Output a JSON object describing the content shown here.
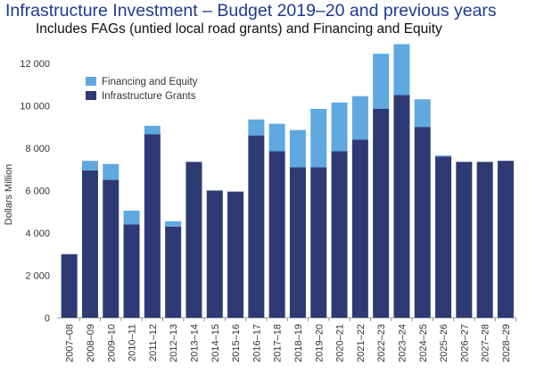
{
  "chart_data": {
    "type": "bar",
    "stacked": true,
    "title": "Infrastructure Investment – Budget 2019–20 and previous years",
    "subtitle": "Includes FAGs (untied local road grants) and Financing and Equity",
    "xlabel": "",
    "ylabel": "Dollars Million",
    "ylim": [
      0,
      13300
    ],
    "yticks": [
      0,
      2000,
      4000,
      6000,
      8000,
      10000,
      12000
    ],
    "ytick_labels": [
      "0",
      "2 000",
      "4 000",
      "6 000",
      "8 000",
      "10 000",
      "12 000"
    ],
    "grid": false,
    "legend_position": "top-left",
    "categories": [
      "2007–08",
      "2008–09",
      "2009–10",
      "2010–11",
      "2011–12",
      "2012–13",
      "2013–14",
      "2014–15",
      "2015–16",
      "2016–17",
      "2017–18",
      "2018–19",
      "2019–20",
      "2020–21",
      "2021–22",
      "2022–23",
      "2023–24",
      "2024–25",
      "2025–26",
      "2026–27",
      "2027–28",
      "2028–29"
    ],
    "series": [
      {
        "name": "Infrastructure Grants",
        "color": "#2e3a73",
        "values": [
          3000,
          6950,
          6500,
          4400,
          8650,
          4300,
          7350,
          6000,
          5950,
          8600,
          7850,
          7100,
          7100,
          7850,
          8400,
          9850,
          10500,
          9000,
          7600,
          7350,
          7350,
          7400
        ]
      },
      {
        "name": "Financing and Equity",
        "color": "#5fa8e0",
        "values": [
          0,
          450,
          750,
          650,
          400,
          250,
          0,
          0,
          0,
          750,
          1300,
          1750,
          2750,
          2300,
          2050,
          2600,
          2400,
          1300,
          50,
          0,
          0,
          0
        ]
      }
    ]
  }
}
